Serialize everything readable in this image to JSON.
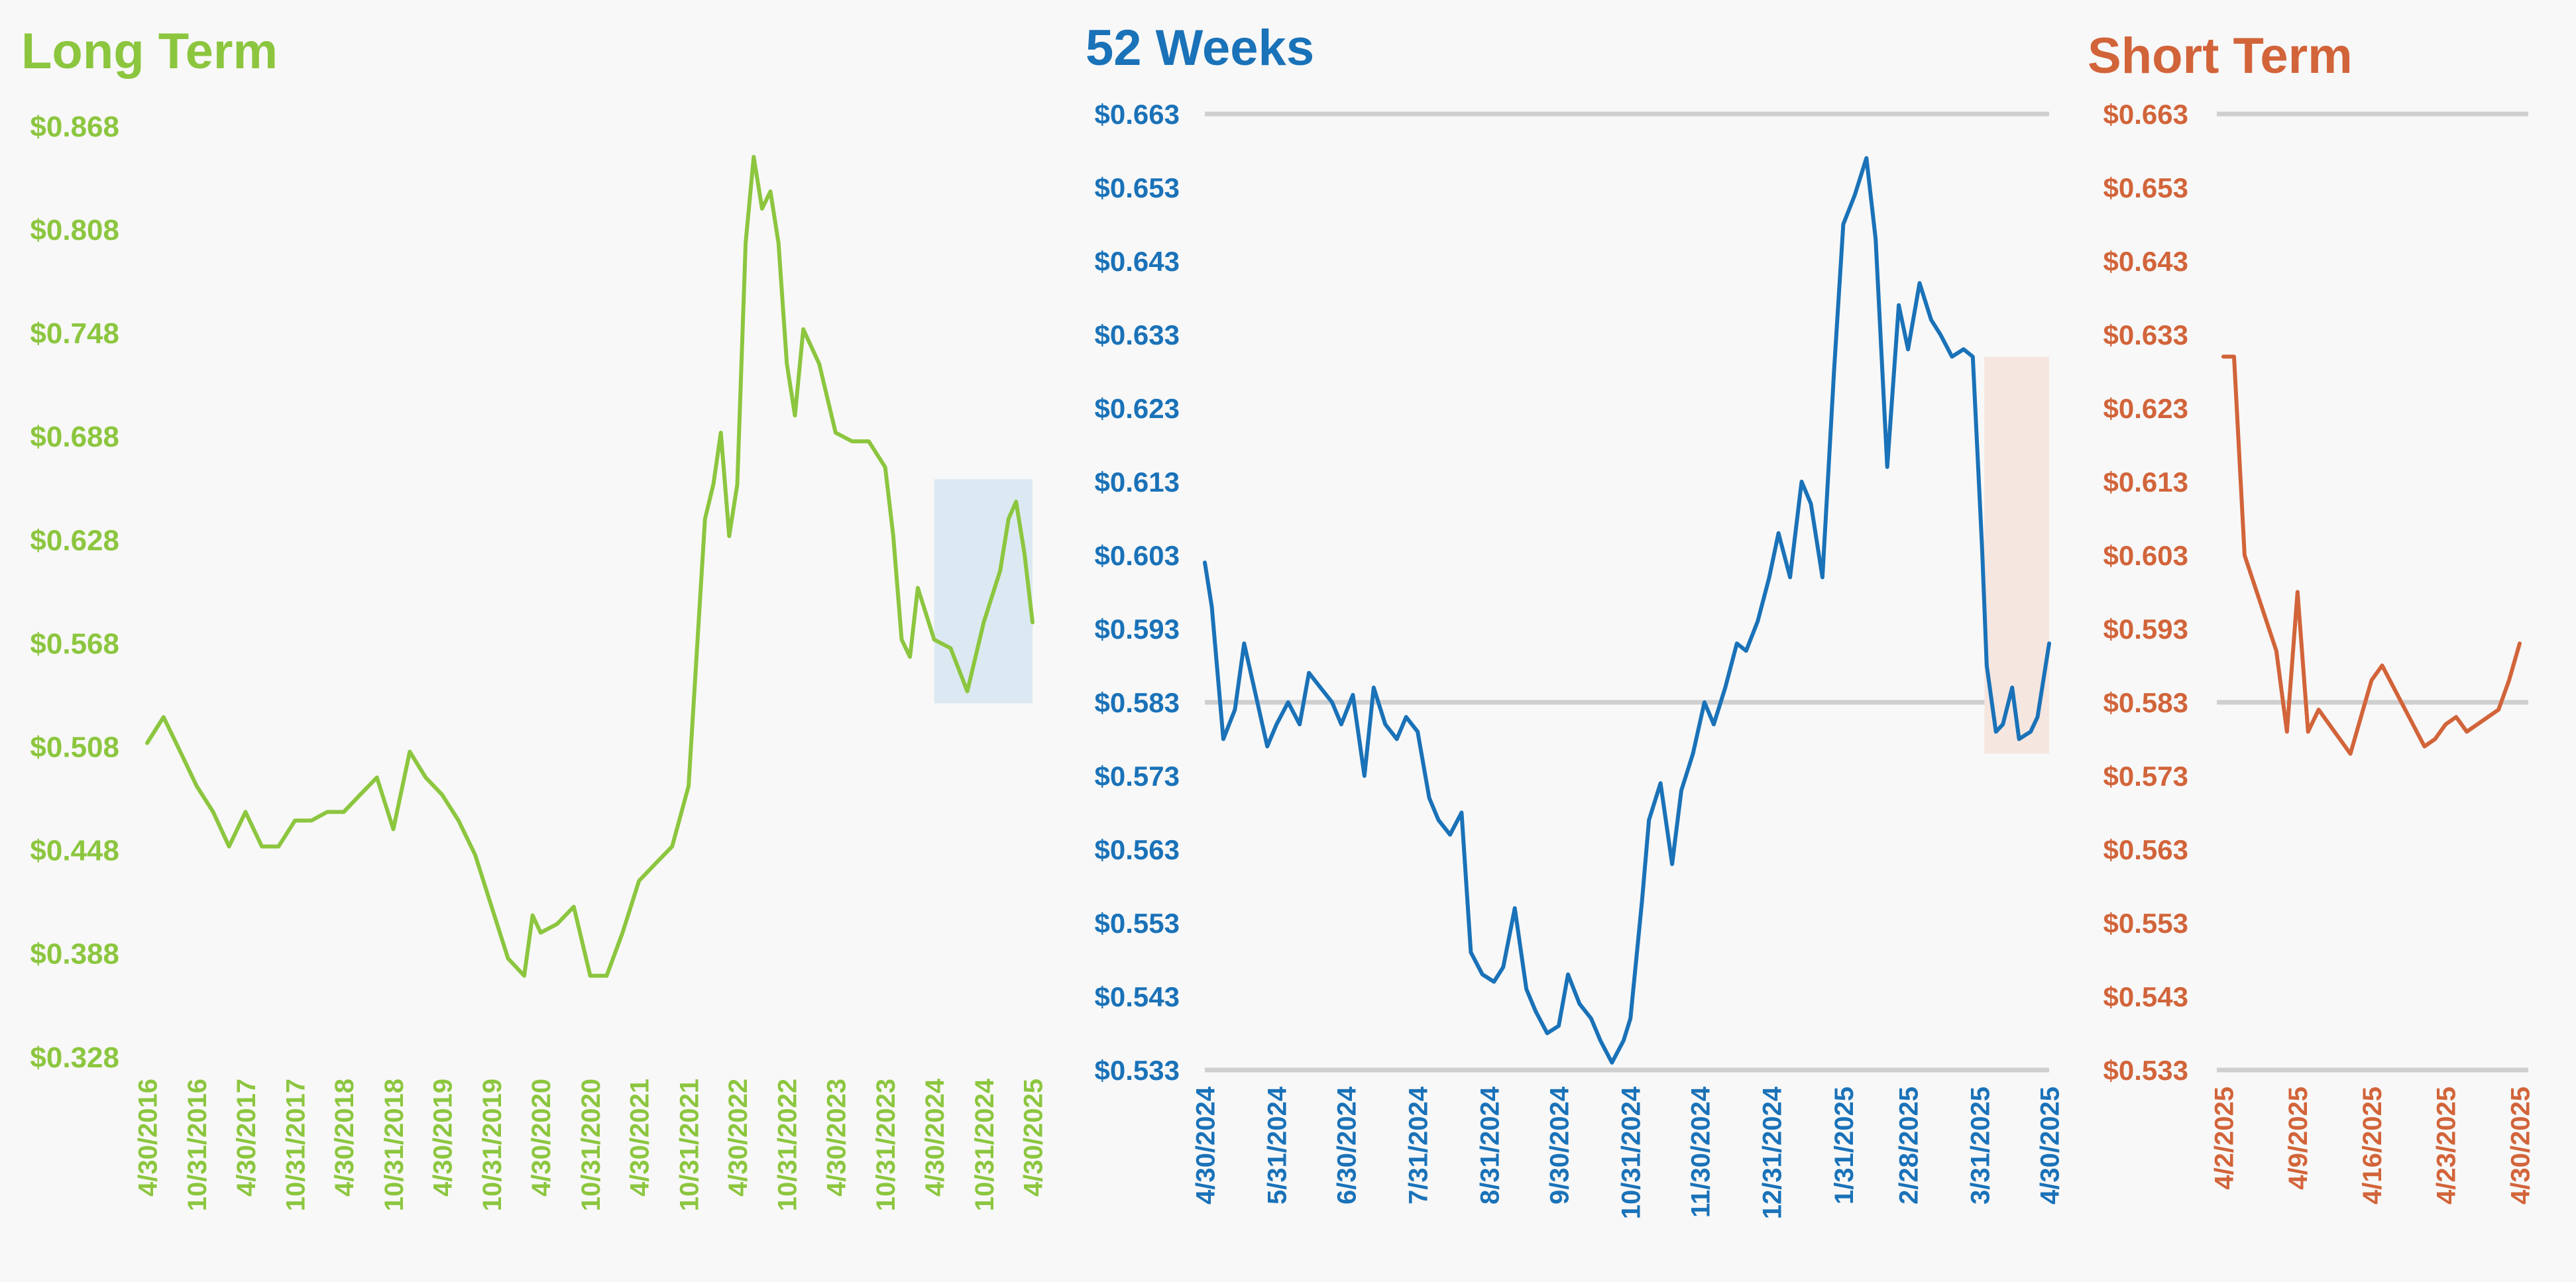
{
  "chart_data": [
    {
      "type": "line",
      "title": "Long Term",
      "color": "#8cc63f",
      "ylim": [
        0.328,
        0.868
      ],
      "yticks": [
        "$0.868",
        "$0.808",
        "$0.748",
        "$0.688",
        "$0.628",
        "$0.568",
        "$0.508",
        "$0.448",
        "$0.388",
        "$0.328"
      ],
      "yticks_values": [
        0.868,
        0.808,
        0.748,
        0.688,
        0.628,
        0.568,
        0.508,
        0.448,
        0.388,
        0.328
      ],
      "xticks": [
        "4/30/2016",
        "10/31/2016",
        "4/30/2017",
        "10/31/2017",
        "4/30/2018",
        "10/31/2018",
        "4/30/2019",
        "10/31/2019",
        "4/30/2020",
        "10/31/2020",
        "4/30/2021",
        "10/31/2021",
        "4/30/2022",
        "10/31/2022",
        "4/30/2023",
        "10/31/2023",
        "4/30/2024",
        "10/31/2024",
        "4/30/2025"
      ],
      "x": [
        "2016-04-30",
        "2016-06-30",
        "2016-08-31",
        "2016-10-31",
        "2016-12-31",
        "2017-02-28",
        "2017-04-30",
        "2017-06-30",
        "2017-08-31",
        "2017-10-31",
        "2017-12-31",
        "2018-02-28",
        "2018-04-30",
        "2018-06-30",
        "2018-08-31",
        "2018-10-31",
        "2018-12-31",
        "2019-02-28",
        "2019-04-30",
        "2019-06-30",
        "2019-08-31",
        "2019-10-31",
        "2019-12-31",
        "2020-02-29",
        "2020-03-31",
        "2020-04-30",
        "2020-06-30",
        "2020-08-31",
        "2020-10-31",
        "2020-12-31",
        "2021-02-28",
        "2021-04-30",
        "2021-06-30",
        "2021-08-31",
        "2021-10-31",
        "2021-12-31",
        "2022-01-31",
        "2022-02-28",
        "2022-03-31",
        "2022-04-30",
        "2022-05-31",
        "2022-06-30",
        "2022-07-31",
        "2022-08-31",
        "2022-09-30",
        "2022-10-31",
        "2022-11-30",
        "2022-12-31",
        "2023-02-28",
        "2023-04-30",
        "2023-06-30",
        "2023-08-31",
        "2023-10-31",
        "2023-11-30",
        "2023-12-31",
        "2024-01-31",
        "2024-02-29",
        "2024-04-30",
        "2024-06-30",
        "2024-08-31",
        "2024-10-31",
        "2024-12-31",
        "2025-01-31",
        "2025-02-28",
        "2025-03-31",
        "2025-04-30"
      ],
      "y": [
        0.51,
        0.525,
        0.505,
        0.485,
        0.47,
        0.45,
        0.47,
        0.45,
        0.45,
        0.465,
        0.465,
        0.47,
        0.47,
        0.48,
        0.49,
        0.46,
        0.505,
        0.49,
        0.48,
        0.465,
        0.445,
        0.415,
        0.385,
        0.375,
        0.41,
        0.4,
        0.405,
        0.415,
        0.375,
        0.375,
        0.4,
        0.43,
        0.44,
        0.45,
        0.485,
        0.64,
        0.66,
        0.69,
        0.63,
        0.66,
        0.8,
        0.85,
        0.82,
        0.83,
        0.8,
        0.73,
        0.7,
        0.75,
        0.73,
        0.69,
        0.685,
        0.685,
        0.67,
        0.63,
        0.57,
        0.56,
        0.6,
        0.57,
        0.565,
        0.54,
        0.58,
        0.61,
        0.64,
        0.65,
        0.62,
        0.58
      ],
      "xlim": [
        "2016-04-30",
        "2025-04-30"
      ],
      "highlight": {
        "x": [
          "2024-04-30",
          "2025-04-30"
        ],
        "y": [
          0.533,
          0.663
        ],
        "color": "#dce9f3"
      }
    },
    {
      "type": "line",
      "title": "52 Weeks",
      "color": "#1a72b8",
      "ylim": [
        0.533,
        0.663
      ],
      "yticks": [
        "$0.663",
        "$0.653",
        "$0.643",
        "$0.633",
        "$0.623",
        "$0.613",
        "$0.603",
        "$0.593",
        "$0.583",
        "$0.573",
        "$0.563",
        "$0.553",
        "$0.543",
        "$0.533"
      ],
      "yticks_values": [
        0.663,
        0.653,
        0.643,
        0.633,
        0.623,
        0.613,
        0.603,
        0.593,
        0.583,
        0.573,
        0.563,
        0.553,
        0.543,
        0.533
      ],
      "grid_values": [
        0.663,
        0.583,
        0.533
      ],
      "xticks": [
        "4/30/2024",
        "5/31/2024",
        "6/30/2024",
        "7/31/2024",
        "8/31/2024",
        "9/30/2024",
        "10/31/2024",
        "11/30/2024",
        "12/31/2024",
        "1/31/2025",
        "2/28/2025",
        "3/31/2025",
        "4/30/2025"
      ],
      "x": [
        "2024-04-30",
        "2024-05-03",
        "2024-05-08",
        "2024-05-13",
        "2024-05-17",
        "2024-05-22",
        "2024-05-27",
        "2024-05-31",
        "2024-06-05",
        "2024-06-10",
        "2024-06-14",
        "2024-06-19",
        "2024-06-24",
        "2024-06-28",
        "2024-07-03",
        "2024-07-08",
        "2024-07-12",
        "2024-07-17",
        "2024-07-22",
        "2024-07-26",
        "2024-07-31",
        "2024-08-05",
        "2024-08-09",
        "2024-08-14",
        "2024-08-19",
        "2024-08-23",
        "2024-08-28",
        "2024-09-02",
        "2024-09-06",
        "2024-09-11",
        "2024-09-16",
        "2024-09-20",
        "2024-09-25",
        "2024-09-30",
        "2024-10-04",
        "2024-10-09",
        "2024-10-14",
        "2024-10-18",
        "2024-10-23",
        "2024-10-28",
        "2024-10-31",
        "2024-11-05",
        "2024-11-08",
        "2024-11-13",
        "2024-11-18",
        "2024-11-22",
        "2024-11-27",
        "2024-12-02",
        "2024-12-06",
        "2024-12-11",
        "2024-12-16",
        "2024-12-20",
        "2024-12-25",
        "2024-12-30",
        "2025-01-03",
        "2025-01-08",
        "2025-01-13",
        "2025-01-17",
        "2025-01-22",
        "2025-01-27",
        "2025-01-31",
        "2025-02-05",
        "2025-02-10",
        "2025-02-14",
        "2025-02-19",
        "2025-02-24",
        "2025-02-28",
        "2025-03-05",
        "2025-03-10",
        "2025-03-14",
        "2025-03-19",
        "2025-03-24",
        "2025-03-28",
        "2025-04-01",
        "2025-04-03",
        "2025-04-07",
        "2025-04-10",
        "2025-04-14",
        "2025-04-17",
        "2025-04-22",
        "2025-04-25",
        "2025-04-30"
      ],
      "y": [
        0.602,
        0.596,
        0.578,
        0.582,
        0.591,
        0.584,
        0.577,
        0.58,
        0.583,
        0.58,
        0.587,
        0.585,
        0.583,
        0.58,
        0.584,
        0.573,
        0.585,
        0.58,
        0.578,
        0.581,
        0.579,
        0.57,
        0.567,
        0.565,
        0.568,
        0.549,
        0.546,
        0.545,
        0.547,
        0.555,
        0.544,
        0.541,
        0.538,
        0.539,
        0.546,
        0.542,
        0.54,
        0.537,
        0.534,
        0.537,
        0.54,
        0.556,
        0.567,
        0.572,
        0.561,
        0.571,
        0.576,
        0.583,
        0.58,
        0.585,
        0.591,
        0.59,
        0.594,
        0.6,
        0.606,
        0.6,
        0.613,
        0.61,
        0.6,
        0.628,
        0.648,
        0.652,
        0.657,
        0.646,
        0.615,
        0.637,
        0.631,
        0.64,
        0.635,
        0.633,
        0.63,
        0.631,
        0.63,
        0.604,
        0.588,
        0.579,
        0.58,
        0.585,
        0.578,
        0.579,
        0.581,
        0.591
      ],
      "xlim": [
        "2024-04-30",
        "2025-04-30"
      ],
      "highlight": {
        "x": [
          "2025-04-02",
          "2025-04-30"
        ],
        "y": [
          0.576,
          0.63
        ],
        "color": "#f5e6e0"
      }
    },
    {
      "type": "line",
      "title": "Short Term",
      "color": "#d2643a",
      "ylim": [
        0.533,
        0.663
      ],
      "yticks": [
        "$0.663",
        "$0.653",
        "$0.643",
        "$0.633",
        "$0.623",
        "$0.613",
        "$0.603",
        "$0.593",
        "$0.583",
        "$0.573",
        "$0.563",
        "$0.553",
        "$0.543",
        "$0.533"
      ],
      "yticks_values": [
        0.663,
        0.653,
        0.643,
        0.633,
        0.623,
        0.613,
        0.603,
        0.593,
        0.583,
        0.573,
        0.563,
        0.553,
        0.543,
        0.533
      ],
      "grid_values": [
        0.663,
        0.583,
        0.533
      ],
      "xticks": [
        "4/2/2025",
        "4/9/2025",
        "4/16/2025",
        "4/23/2025",
        "4/30/2025"
      ],
      "x": [
        "2025-04-02",
        "2025-04-03",
        "2025-04-04",
        "2025-04-07",
        "2025-04-08",
        "2025-04-09",
        "2025-04-10",
        "2025-04-11",
        "2025-04-14",
        "2025-04-15",
        "2025-04-16",
        "2025-04-17",
        "2025-04-21",
        "2025-04-22",
        "2025-04-23",
        "2025-04-24",
        "2025-04-25",
        "2025-04-28",
        "2025-04-29",
        "2025-04-30"
      ],
      "y": [
        0.63,
        0.63,
        0.603,
        0.59,
        0.579,
        0.598,
        0.579,
        0.582,
        0.576,
        0.581,
        0.586,
        0.588,
        0.577,
        0.578,
        0.58,
        0.581,
        0.579,
        0.582,
        0.586,
        0.591
      ],
      "xlim": [
        "2025-04-02",
        "2025-04-30"
      ]
    }
  ]
}
